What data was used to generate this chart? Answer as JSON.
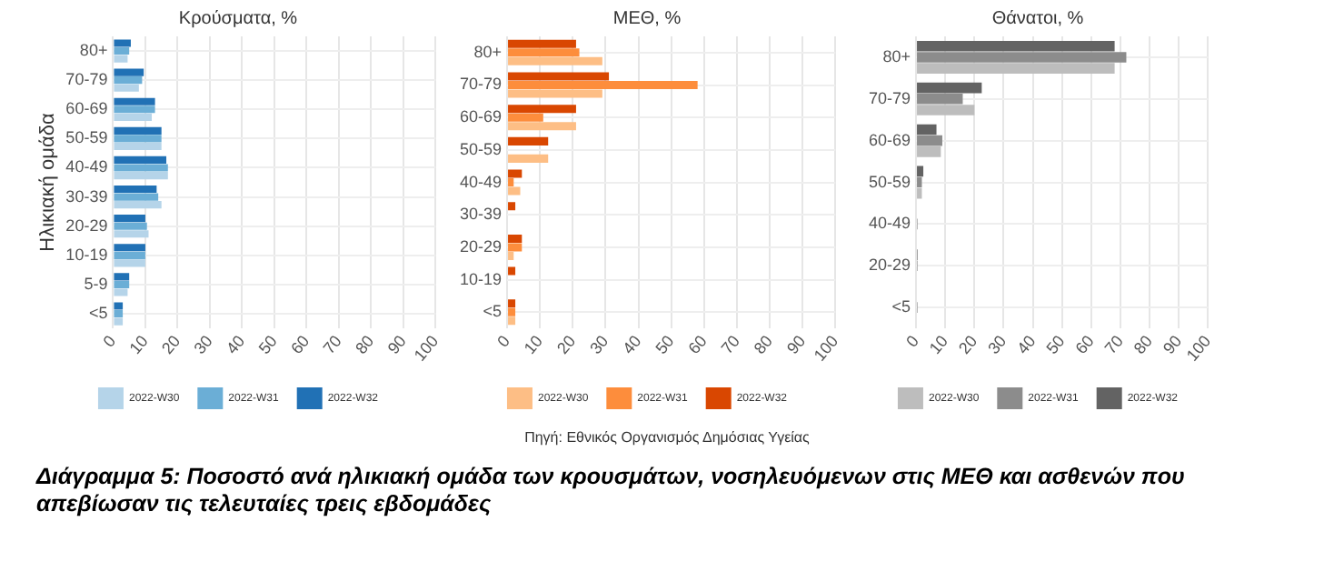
{
  "chart_data": [
    {
      "type": "bar",
      "orientation": "horizontal",
      "title": "Κρούσματα, %",
      "ylabel": "Ηλικιακή ομάδα",
      "categories": [
        "80+",
        "70-79",
        "60-69",
        "50-59",
        "40-49",
        "30-39",
        "20-29",
        "10-19",
        "5-9",
        "<5"
      ],
      "series": [
        {
          "name": "2022-W30",
          "color": "#b5d4e9",
          "values": [
            4.5,
            8,
            12,
            15,
            17,
            15,
            11,
            10,
            4.5,
            3
          ]
        },
        {
          "name": "2022-W31",
          "color": "#6baed6",
          "values": [
            5,
            9,
            13,
            15,
            17,
            14,
            10.5,
            10,
            5,
            3
          ]
        },
        {
          "name": "2022-W32",
          "color": "#2171b5",
          "values": [
            5.5,
            9.5,
            13,
            15,
            16.5,
            13.5,
            10,
            10,
            5,
            3
          ]
        }
      ],
      "xlim": [
        0,
        100
      ],
      "xticks": [
        0,
        10,
        20,
        30,
        40,
        50,
        60,
        70,
        80,
        90,
        100
      ],
      "grid": true,
      "legend": "bottom",
      "annotations": [
        "Πηγή: Εθνικός Οργανισμός Δημόσιας Υγείας",
        "Διάγραμμα 5: Ποσοστό ανά ηλικιακή ομάδα των κρουσμάτων, νοσηλευόμενων στις ΜΕΘ και ασθενών που απεβίωσαν τις τελευταίες τρεις εβδομάδες"
      ]
    },
    {
      "type": "bar",
      "orientation": "horizontal",
      "title": "ΜΕΘ, %",
      "categories": [
        "80+",
        "70-79",
        "60-69",
        "50-59",
        "40-49",
        "30-39",
        "20-29",
        "10-19",
        "<5"
      ],
      "series": [
        {
          "name": "2022-W30",
          "color": "#fdbe85",
          "values": [
            29,
            29,
            21,
            12.5,
            4,
            null,
            2,
            null,
            2.5
          ]
        },
        {
          "name": "2022-W31",
          "color": "#fd8d3c",
          "values": [
            22,
            58,
            11,
            null,
            2,
            null,
            4.5,
            null,
            2.5
          ]
        },
        {
          "name": "2022-W32",
          "color": "#d94701",
          "values": [
            21,
            31,
            21,
            12.5,
            4.5,
            2.5,
            4.5,
            2.5,
            2.5
          ]
        }
      ],
      "xlim": [
        0,
        100
      ],
      "xticks": [
        0,
        10,
        20,
        30,
        40,
        50,
        60,
        70,
        80,
        90,
        100
      ],
      "grid": true,
      "legend": "bottom"
    },
    {
      "type": "bar",
      "orientation": "horizontal",
      "title": "Θάνατοι, %",
      "categories": [
        "80+",
        "70-79",
        "60-69",
        "50-59",
        "40-49",
        "20-29",
        "<5"
      ],
      "series": [
        {
          "name": "2022-W30",
          "color": "#bdbdbd",
          "values": [
            68,
            20,
            8.5,
            2,
            null,
            null,
            null
          ]
        },
        {
          "name": "2022-W31",
          "color": "#8c8c8c",
          "values": [
            72,
            16,
            9,
            2,
            0.5,
            0.5,
            0.5
          ]
        },
        {
          "name": "2022-W32",
          "color": "#636363",
          "values": [
            68,
            22.5,
            7,
            2.5,
            null,
            0.5,
            null
          ]
        }
      ],
      "xlim": [
        0,
        100
      ],
      "xticks": [
        0,
        10,
        20,
        30,
        40,
        50,
        60,
        70,
        80,
        90,
        100
      ],
      "grid": true,
      "legend": "bottom"
    }
  ]
}
